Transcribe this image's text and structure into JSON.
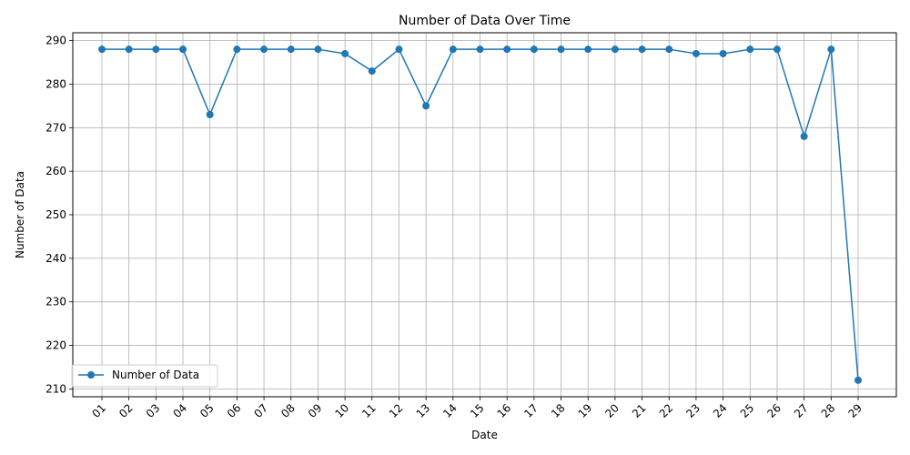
{
  "chart_data": {
    "type": "line",
    "title": "Number of Data Over Time",
    "xlabel": "Date",
    "ylabel": "Number of Data",
    "categories": [
      "01",
      "02",
      "03",
      "04",
      "05",
      "06",
      "07",
      "08",
      "09",
      "10",
      "11",
      "12",
      "13",
      "14",
      "15",
      "16",
      "17",
      "18",
      "19",
      "20",
      "21",
      "22",
      "23",
      "24",
      "25",
      "26",
      "27",
      "28",
      "29"
    ],
    "series": [
      {
        "name": "Number of Data",
        "values": [
          288,
          288,
          288,
          288,
          273,
          288,
          288,
          288,
          288,
          287,
          283,
          288,
          275,
          288,
          288,
          288,
          288,
          288,
          288,
          288,
          288,
          288,
          287,
          287,
          288,
          288,
          268,
          288,
          212
        ],
        "color": "#1f77b4",
        "marker": "circle"
      }
    ],
    "ylim": [
      208.2,
      291.8
    ],
    "yticks": [
      210,
      220,
      230,
      240,
      250,
      260,
      270,
      280,
      290
    ],
    "grid": true,
    "legend_position": "lower-left",
    "x_tick_rotation": 45
  }
}
